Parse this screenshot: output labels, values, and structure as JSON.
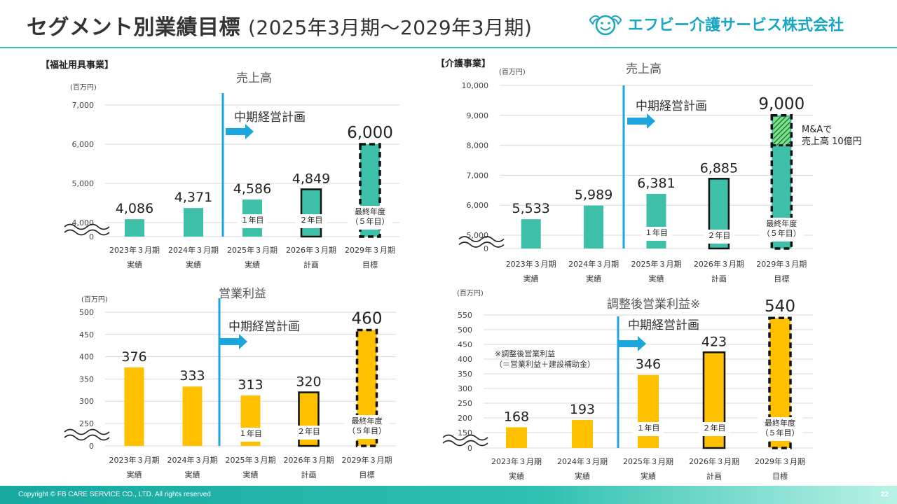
{
  "header": {
    "title_main": "セグメント別業績目標",
    "title_sub": "(2025年3月期～2029年3月期)",
    "company": "エフビー介護サービス株式会社"
  },
  "sections": {
    "welfare": "【福祉用具事業】",
    "care": "【介護事業】"
  },
  "footer": {
    "copyright": "Copyright © FB CARE SERVICE CO., LTD. All rights reserved",
    "page": "22"
  },
  "colors": {
    "teal": "#3dbfa9",
    "yellow": "#ffc000",
    "plan_line": "#1ba7dd"
  },
  "chart_data": [
    {
      "id": "welfare_sales",
      "type": "bar",
      "title": "売上高",
      "unit": "(百万円)",
      "plan_label": "中期経営計画",
      "categories": [
        "2023年３月期",
        "2024年３月期",
        "2025年３月期",
        "2026年３月期",
        "2029年３月期"
      ],
      "category_sub": [
        "実績",
        "実績",
        "実績",
        "計画",
        "目標"
      ],
      "values": [
        4086,
        4371,
        4586,
        4849,
        6000
      ],
      "value_labels": [
        "4,086",
        "4,371",
        "4,586",
        "4,849",
        "6,000"
      ],
      "bar_notes": [
        "",
        "",
        "１年目",
        "２年目",
        "最終年度\n（５年目）"
      ],
      "yticks": [
        "0",
        "4,000",
        "5,000",
        "6,000",
        "7,000"
      ],
      "ylim": [
        3500,
        7000
      ],
      "axis_break": true,
      "color": "#3dbfa9"
    },
    {
      "id": "care_sales",
      "type": "bar",
      "title": "売上高",
      "unit": "(百万円)",
      "plan_label": "中期経営計画",
      "categories": [
        "2023年３月期",
        "2024年３月期",
        "2025年３月期",
        "2026年３月期",
        "2029年３月期"
      ],
      "category_sub": [
        "実績",
        "実績",
        "実績",
        "計画",
        "目標"
      ],
      "values": [
        5533,
        5989,
        6381,
        6885,
        9000
      ],
      "value_labels": [
        "5,533",
        "5,989",
        "6,381",
        "6,885",
        "9,000"
      ],
      "bar_notes": [
        "",
        "",
        "１年目",
        "２年目",
        "最終年度\n（５年目）"
      ],
      "yticks": [
        "0",
        "5,000",
        "6,000",
        "7,000",
        "8,000",
        "9,000",
        "10,000"
      ],
      "ylim": [
        4000,
        10000
      ],
      "axis_break": true,
      "annotation": "M&Aで\n売上高 10億円",
      "ma_value": 1000,
      "color": "#3dbfa9"
    },
    {
      "id": "welfare_op",
      "type": "bar",
      "title": "営業利益",
      "unit": "(百万円)",
      "plan_label": "中期経営計画",
      "categories": [
        "2023年３月期",
        "2024年３月期",
        "2025年３月期",
        "2026年３月期",
        "2029年３月期"
      ],
      "category_sub": [
        "実績",
        "実績",
        "実績",
        "計画",
        "目標"
      ],
      "values": [
        376,
        333,
        313,
        320,
        460
      ],
      "value_labels": [
        "376",
        "333",
        "313",
        "320",
        "460"
      ],
      "bar_notes": [
        "",
        "",
        "１年目",
        "２年目",
        "最終年度\n（５年目）"
      ],
      "yticks": [
        "0",
        "250",
        "300",
        "350",
        "400",
        "450",
        "500"
      ],
      "ylim": [
        200,
        500
      ],
      "axis_break": true,
      "color": "#ffc000"
    },
    {
      "id": "care_adj_op",
      "type": "bar",
      "title": "調整後営業利益※",
      "unit": "(百万円)",
      "plan_label": "中期経営計画",
      "categories": [
        "2023年３月期",
        "2024年３月期",
        "2025年３月期",
        "2026年３月期",
        "2029年３月期"
      ],
      "category_sub": [
        "実績",
        "実績",
        "実績",
        "計画",
        "目標"
      ],
      "values": [
        168,
        193,
        346,
        423,
        540
      ],
      "value_labels": [
        "168",
        "193",
        "346",
        "423",
        "540"
      ],
      "bar_notes": [
        "",
        "",
        "１年目",
        "２年目",
        "最終年度\n（５年目）"
      ],
      "yticks": [
        "0",
        "150",
        "200",
        "250",
        "300",
        "350",
        "400",
        "450",
        "500",
        "550"
      ],
      "ylim": [
        100,
        550
      ],
      "axis_break": true,
      "footnote": "※調整後営業利益\n（＝営業利益＋建設補助金）",
      "color": "#ffc000"
    }
  ]
}
